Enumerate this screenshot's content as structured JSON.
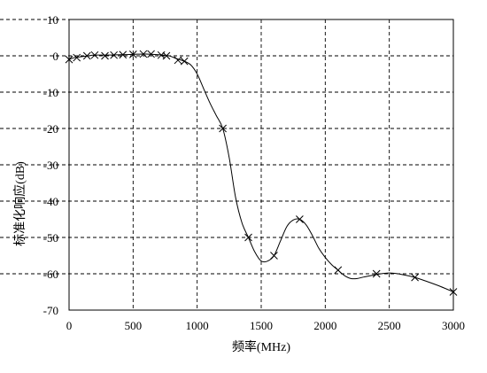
{
  "chart_data": {
    "type": "line",
    "xlabel": "频率(MHz)",
    "ylabel": "标准化响应(dB)",
    "xlim": [
      0,
      3000
    ],
    "ylim": [
      -70,
      10
    ],
    "x_ticks": [
      0,
      500,
      1000,
      1500,
      2000,
      2500,
      3000
    ],
    "y_ticks": [
      10,
      0,
      -10,
      -20,
      -30,
      -40,
      -50,
      -60,
      -70
    ],
    "grid": true,
    "marker": "x",
    "curve": [
      [
        0,
        -1
      ],
      [
        40,
        -0.5
      ],
      [
        80,
        -0.3
      ],
      [
        150,
        0
      ],
      [
        200,
        0.2
      ],
      [
        300,
        0.2
      ],
      [
        400,
        0.3
      ],
      [
        500,
        0.4
      ],
      [
        600,
        0.5
      ],
      [
        700,
        0.3
      ],
      [
        780,
        0
      ],
      [
        840,
        -0.8
      ],
      [
        900,
        -1.5
      ],
      [
        950,
        -2.5
      ],
      [
        1000,
        -5
      ],
      [
        1050,
        -9
      ],
      [
        1100,
        -13
      ],
      [
        1150,
        -16.5
      ],
      [
        1200,
        -20
      ],
      [
        1250,
        -28
      ],
      [
        1300,
        -39
      ],
      [
        1350,
        -46
      ],
      [
        1400,
        -50
      ],
      [
        1450,
        -54
      ],
      [
        1500,
        -56.5
      ],
      [
        1550,
        -56.5
      ],
      [
        1600,
        -55
      ],
      [
        1650,
        -51
      ],
      [
        1700,
        -47
      ],
      [
        1750,
        -45.2
      ],
      [
        1800,
        -45
      ],
      [
        1850,
        -46.5
      ],
      [
        1900,
        -49.5
      ],
      [
        1950,
        -53
      ],
      [
        2000,
        -55.5
      ],
      [
        2050,
        -57.5
      ],
      [
        2100,
        -59
      ],
      [
        2150,
        -60.5
      ],
      [
        2200,
        -61.3
      ],
      [
        2250,
        -61.3
      ],
      [
        2300,
        -60.9
      ],
      [
        2400,
        -60.2
      ],
      [
        2500,
        -59.8
      ],
      [
        2600,
        -60.2
      ],
      [
        2700,
        -61
      ],
      [
        2800,
        -62.2
      ],
      [
        2900,
        -63.5
      ],
      [
        3000,
        -65
      ]
    ],
    "markers": [
      [
        0,
        -1
      ],
      [
        60,
        -0.5
      ],
      [
        140,
        0
      ],
      [
        200,
        0.2
      ],
      [
        280,
        0
      ],
      [
        350,
        0.2
      ],
      [
        420,
        0.3
      ],
      [
        500,
        0.4
      ],
      [
        580,
        0.5
      ],
      [
        640,
        0.5
      ],
      [
        720,
        0.2
      ],
      [
        760,
        0
      ],
      [
        850,
        -1.2
      ],
      [
        900,
        -1.5
      ],
      [
        1200,
        -20
      ],
      [
        1400,
        -50
      ],
      [
        1600,
        -55
      ],
      [
        1800,
        -45
      ],
      [
        2100,
        -59
      ],
      [
        2400,
        -60
      ],
      [
        2700,
        -61
      ],
      [
        3000,
        -65
      ]
    ]
  }
}
